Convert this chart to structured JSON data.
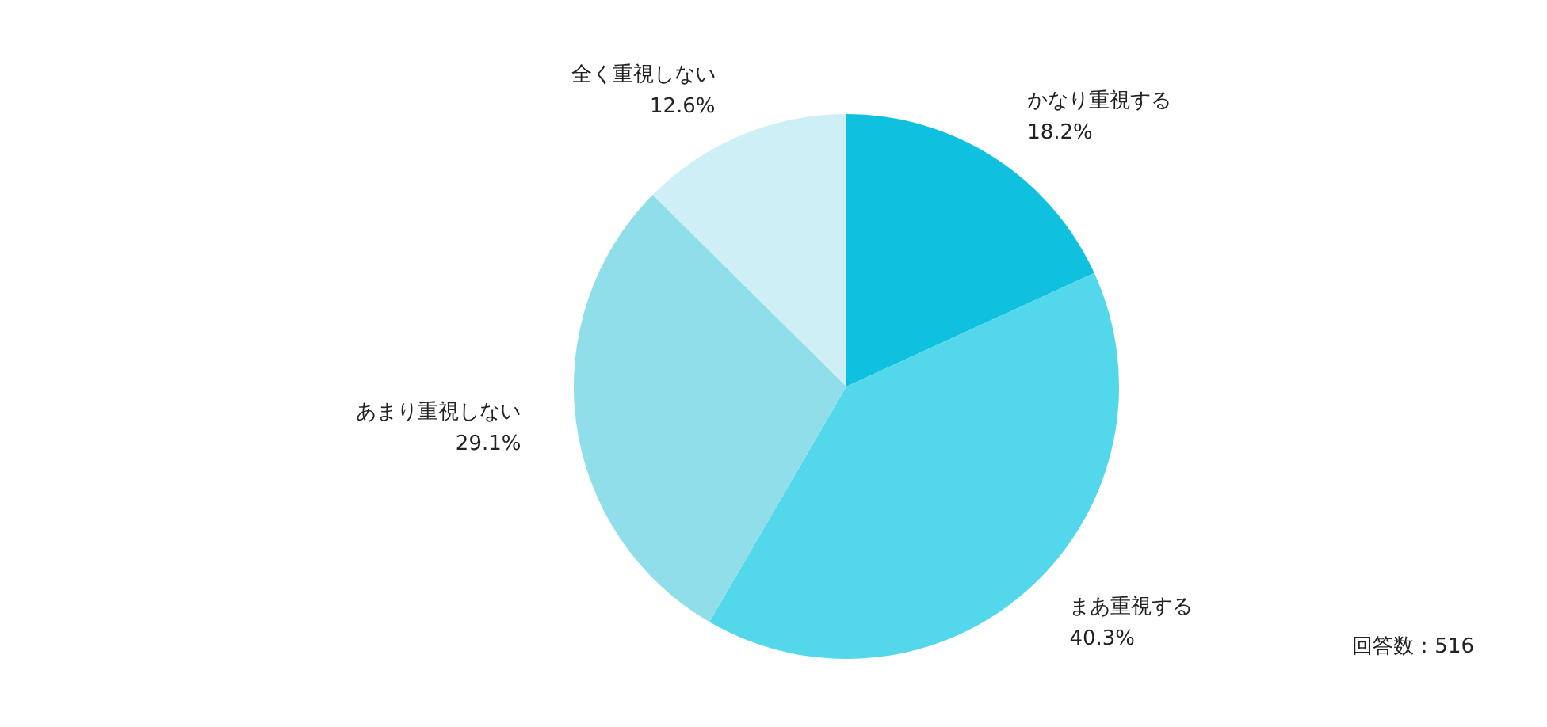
{
  "chart_data": {
    "type": "pie",
    "categories": [
      "かなり重視する",
      "まあ重視する",
      "あまり重視しない",
      "全く重視しない"
    ],
    "values": [
      18.2,
      40.3,
      29.1,
      12.6
    ],
    "value_labels": [
      "18.2%",
      "40.3%",
      "29.1%",
      "12.6%"
    ],
    "colors": [
      "#0fc1df",
      "#52d7eb",
      "#90dee9",
      "#cdeff5"
    ],
    "annotations": [
      "回答数：516"
    ],
    "legend": false
  }
}
